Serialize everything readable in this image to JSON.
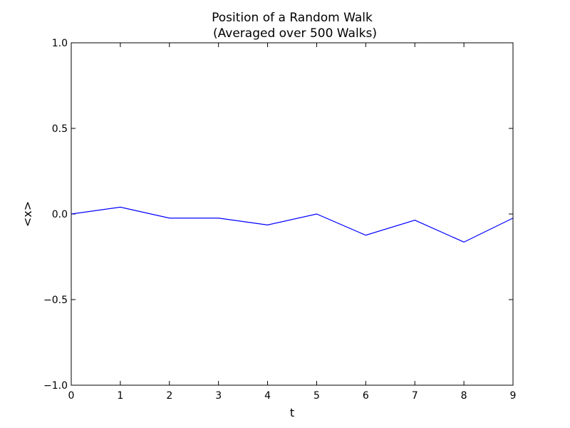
{
  "chart_data": {
    "type": "line",
    "title": "Position of a Random Walk",
    "subtitle": "(Averaged over 500 Walks)",
    "xlabel": "t",
    "ylabel": "<x>",
    "xlim": [
      0,
      9
    ],
    "ylim": [
      -1.0,
      1.0
    ],
    "x_ticks": [
      "0",
      "1",
      "2",
      "3",
      "4",
      "5",
      "6",
      "7",
      "8",
      "9"
    ],
    "y_ticks": [
      "1.0",
      "0.5",
      "0.0",
      "−0.5",
      "−1.0"
    ],
    "grid": false,
    "series": [
      {
        "color": "#0000ff",
        "x": [
          0,
          1,
          2,
          3,
          4,
          5,
          6,
          7,
          8,
          9
        ],
        "values": [
          0.0,
          0.04,
          -0.024,
          -0.024,
          -0.064,
          0.0,
          -0.124,
          -0.036,
          -0.164,
          -0.024
        ]
      }
    ]
  }
}
